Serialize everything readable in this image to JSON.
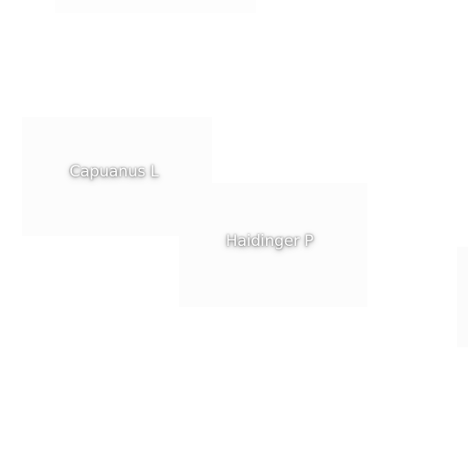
{
  "map": {
    "labels": [
      {
        "id": "capuanus",
        "text": "Capuanus L"
      },
      {
        "id": "haidinger",
        "text": "Haidinger P"
      }
    ]
  },
  "colors": {
    "background": "#ffffff",
    "label_text": "#ffffff",
    "label_halo": "#000000"
  }
}
